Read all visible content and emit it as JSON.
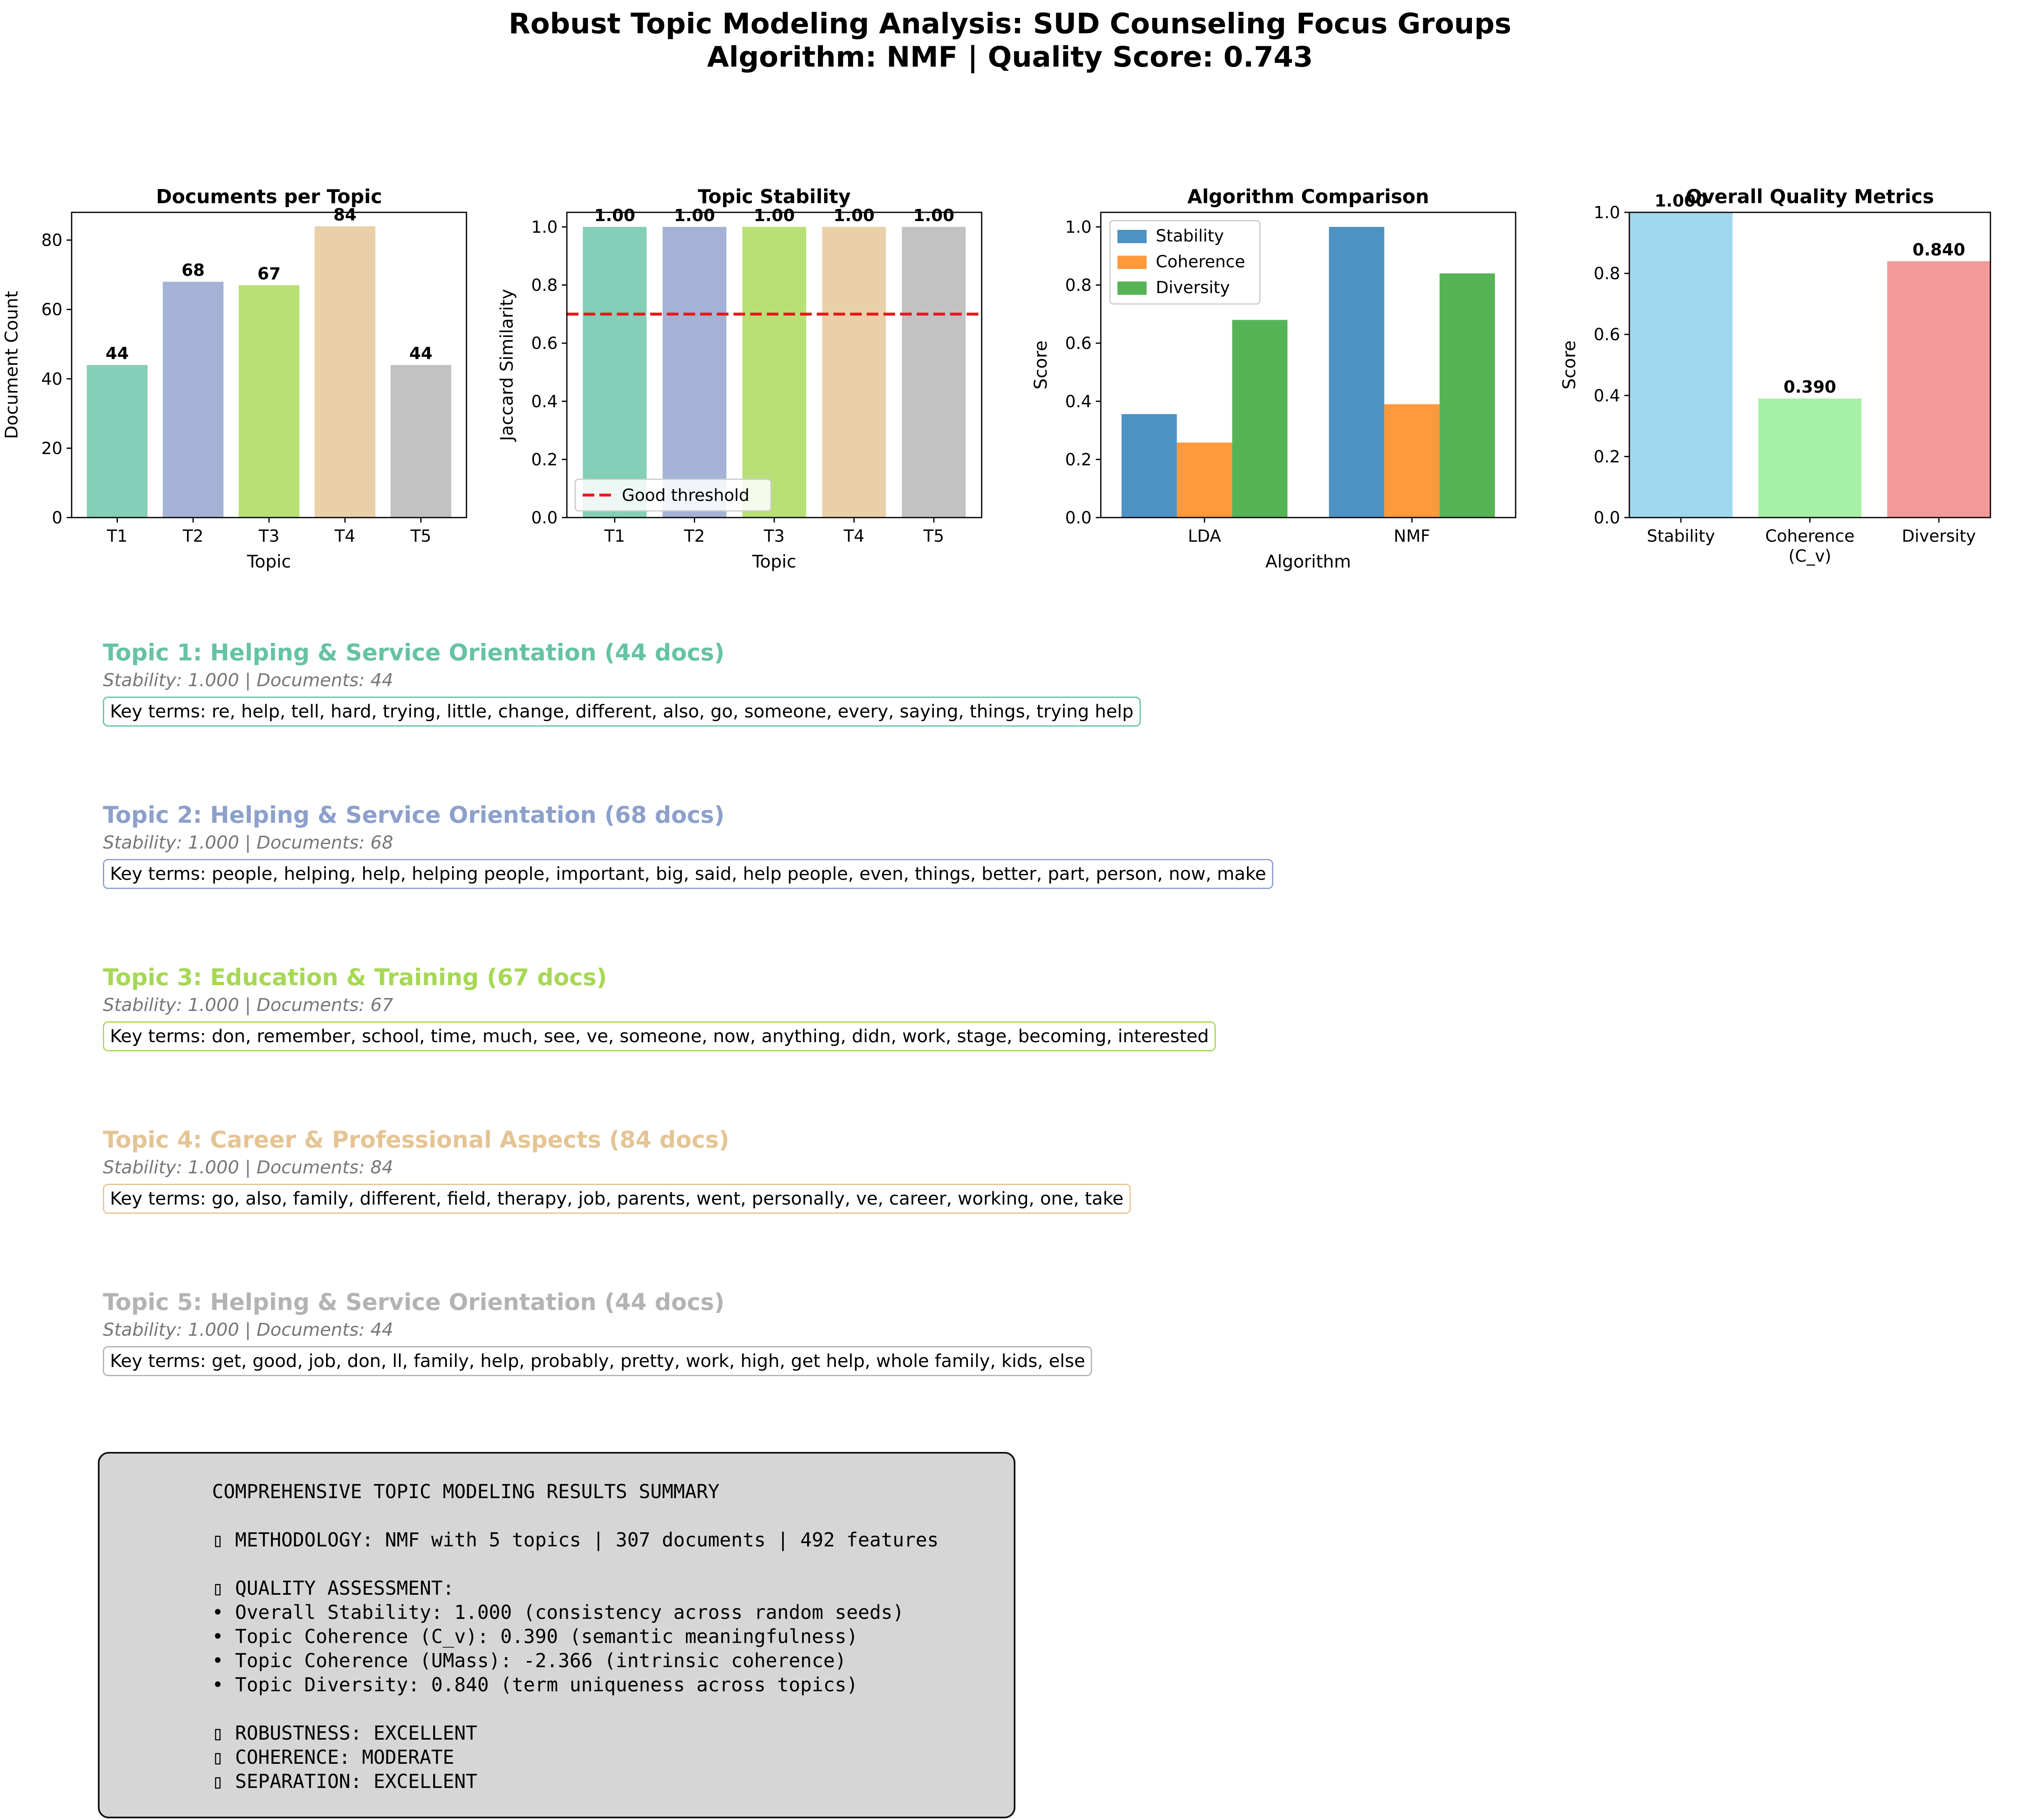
{
  "title": {
    "line1": "Robust Topic Modeling Analysis: SUD Counseling Focus Groups",
    "line2": "Algorithm: NMF | Quality Score: 0.743"
  },
  "chart_data": [
    {
      "type": "bar",
      "title": "Documents per Topic",
      "xlabel": "Topic",
      "ylabel": "Document Count",
      "categories": [
        "T1",
        "T2",
        "T3",
        "T4",
        "T5"
      ],
      "values": [
        44,
        68,
        67,
        84,
        44
      ],
      "value_labels": [
        "44",
        "68",
        "67",
        "84",
        "44"
      ],
      "colors": [
        "#66c2a5",
        "#8da0cb",
        "#a6d854",
        "#e5c494",
        "#b3b3b3"
      ],
      "ylim": [
        0,
        88
      ],
      "yticks": [
        0,
        20,
        40,
        60,
        80
      ]
    },
    {
      "type": "bar",
      "title": "Topic Stability",
      "xlabel": "Topic",
      "ylabel": "Jaccard Similarity",
      "categories": [
        "T1",
        "T2",
        "T3",
        "T4",
        "T5"
      ],
      "values": [
        1.0,
        1.0,
        1.0,
        1.0,
        1.0
      ],
      "value_labels": [
        "1.00",
        "1.00",
        "1.00",
        "1.00",
        "1.00"
      ],
      "colors": [
        "#66c2a5",
        "#8da0cb",
        "#a6d854",
        "#e5c494",
        "#b3b3b3"
      ],
      "threshold": {
        "value": 0.7,
        "label": "Good threshold",
        "color": "#e41a1c"
      },
      "legend": "lower-left",
      "ylim": [
        0,
        1.05
      ],
      "yticks": [
        0.0,
        0.2,
        0.4,
        0.6,
        0.8,
        1.0
      ]
    },
    {
      "type": "bar",
      "title": "Algorithm Comparison",
      "xlabel": "Algorithm",
      "ylabel": "Score",
      "categories": [
        "LDA",
        "NMF"
      ],
      "series": [
        {
          "name": "Stability",
          "values": [
            0.356,
            1.0
          ],
          "color": "#1f77b4"
        },
        {
          "name": "Coherence",
          "values": [
            0.258,
            0.39
          ],
          "color": "#ff7f0e"
        },
        {
          "name": "Diversity",
          "values": [
            0.68,
            0.84
          ],
          "color": "#2ca02c"
        }
      ],
      "legend": "top-left",
      "ylim": [
        0,
        1.05
      ],
      "yticks": [
        0.0,
        0.2,
        0.4,
        0.6,
        0.8,
        1.0
      ]
    },
    {
      "type": "bar",
      "title": "Overall Quality Metrics",
      "xlabel": "",
      "ylabel": "Score",
      "categories": [
        "Stability",
        "Coherence\n(C_v)",
        "Diversity"
      ],
      "values": [
        1.0,
        0.39,
        0.84
      ],
      "value_labels": [
        "1.000",
        "0.390",
        "0.840"
      ],
      "colors": [
        "#87ceeb",
        "#90ee90",
        "#f08080"
      ],
      "ylim": [
        0,
        1.0
      ],
      "yticks": [
        0.0,
        0.2,
        0.4,
        0.6,
        0.8,
        1.0
      ]
    }
  ],
  "topics": [
    {
      "title": "Topic 1: Helping & Service Orientation (44 docs)",
      "meta": "Stability: 1.000 | Documents: 44",
      "terms": "Key terms: re, help, tell, hard, trying, little, change, different, also, go, someone, every, saying, things, trying help",
      "color": "#66c2a5"
    },
    {
      "title": "Topic 2: Helping & Service Orientation (68 docs)",
      "meta": "Stability: 1.000 | Documents: 68",
      "terms": "Key terms: people, helping, help, helping people, important, big, said, help people, even, things, better, part, person, now, make",
      "color": "#8da0cb"
    },
    {
      "title": "Topic 3: Education & Training (67 docs)",
      "meta": "Stability: 1.000 | Documents: 67",
      "terms": "Key terms: don, remember, school, time, much, see, ve, someone, now, anything, didn, work, stage, becoming, interested",
      "color": "#a6d854"
    },
    {
      "title": "Topic 4: Career & Professional Aspects (84 docs)",
      "meta": "Stability: 1.000 | Documents: 84",
      "terms": "Key terms: go, also, family, different, field, therapy, job, parents, went, personally, ve, career, working, one, take",
      "color": "#e5c494"
    },
    {
      "title": "Topic 5: Helping & Service Orientation (44 docs)",
      "meta": "Stability: 1.000 | Documents: 44",
      "terms": "Key terms: get, good, job, don, ll, family, help, probably, pretty, work, high, get help, whole family, kids, else",
      "color": "#b3b3b3"
    }
  ],
  "summary": {
    "lines": [
      "COMPREHENSIVE TOPIC MODELING RESULTS SUMMARY",
      "",
      "▯ METHODOLOGY: NMF with 5 topics | 307 documents | 492 features",
      "",
      "▯ QUALITY ASSESSMENT:",
      "• Overall Stability: 1.000 (consistency across random seeds)",
      "• Topic Coherence (C_v): 0.390 (semantic meaningfulness)",
      "• Topic Coherence (UMass): -2.366 (intrinsic coherence)",
      "• Topic Diversity: 0.840 (term uniqueness across topics)",
      "",
      "▯ ROBUSTNESS: EXCELLENT",
      "▯ COHERENCE: MODERATE",
      "▯ SEPARATION: EXCELLENT"
    ]
  }
}
